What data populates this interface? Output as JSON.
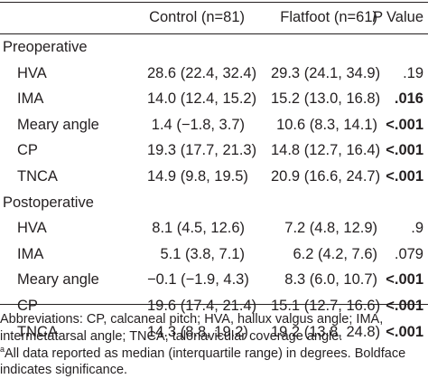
{
  "header": {
    "col_control": "Control (n=81)",
    "col_flatfoot": "Flatfoot (n=61)",
    "col_p_italic": "P",
    "col_p_rest": " Value"
  },
  "sections": [
    {
      "title": "Preoperative",
      "rows": [
        {
          "label": "HVA",
          "control": "28.6 (22.4, 32.4)",
          "flatfoot": "29.3 (24.1, 34.9)",
          "p": ".19",
          "bold": false
        },
        {
          "label": "IMA",
          "control": "14.0 (12.4, 15.2)",
          "flatfoot": "15.2 (13.0, 16.8)",
          "p": ".016",
          "bold": true
        },
        {
          "label": "Meary angle",
          "control": "1.4 (−1.8, 3.7)",
          "flatfoot": "10.6 (8.3, 14.1)",
          "p": "<.001",
          "bold": true
        },
        {
          "label": "CP",
          "control": "19.3 (17.7, 21.3)",
          "flatfoot": "14.8 (12.7, 16.4)",
          "p": "<.001",
          "bold": true
        },
        {
          "label": "TNCA",
          "control": "14.9 (9.8, 19.5)",
          "flatfoot": "20.9 (16.6, 24.7)",
          "p": "<.001",
          "bold": true
        }
      ]
    },
    {
      "title": "Postoperative",
      "rows": [
        {
          "label": "HVA",
          "control": "8.1 (4.5, 12.6)",
          "flatfoot": "7.2 (4.8, 12.9)",
          "p": ".9",
          "bold": false
        },
        {
          "label": "IMA",
          "control": "5.1 (3.8, 7.1)",
          "flatfoot": "6.2 (4.2, 7.6)",
          "p": ".079",
          "bold": false
        },
        {
          "label": "Meary angle",
          "control": "−0.1 (−1.9, 4.3)",
          "flatfoot": "8.3 (6.0, 10.7)",
          "p": "<.001",
          "bold": true
        },
        {
          "label": "CP",
          "control": "19.6 (17.4, 21.4)",
          "flatfoot": "15.1 (12.7, 16.6)",
          "p": "<.001",
          "bold": true
        },
        {
          "label": "TNCA",
          "control": "14.3 (8.8, 19.2)",
          "flatfoot": "19.2 (13.8, 24.8)",
          "p": "<.001",
          "bold": true
        }
      ]
    }
  ],
  "footnotes": {
    "abbrev_line1": "Abbreviations: CP, calcaneal pitch; HVA, hallux valgus angle; IMA,",
    "abbrev_line2": "intermetatarsal angle; TNCA, talonavicular coverage angle.",
    "note_marker": "a",
    "note_line1": "All data reported as median (interquartile range) in degrees. Boldface",
    "note_line2": "indicates significance."
  }
}
